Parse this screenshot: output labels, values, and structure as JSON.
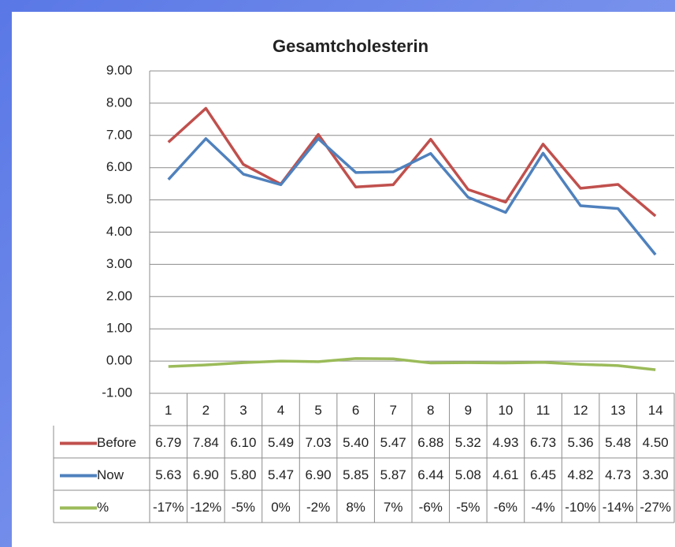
{
  "chart_data": {
    "type": "line",
    "title": "Gesamtcholesterin",
    "categories": [
      "1",
      "2",
      "3",
      "4",
      "5",
      "6",
      "7",
      "8",
      "9",
      "10",
      "11",
      "12",
      "13",
      "14"
    ],
    "series": [
      {
        "name": "Before",
        "color": "#c0504d",
        "values": [
          6.79,
          7.84,
          6.1,
          5.49,
          7.03,
          5.4,
          5.47,
          6.88,
          5.32,
          4.93,
          6.73,
          5.36,
          5.48,
          4.5
        ],
        "value_labels": [
          "6.79",
          "7.84",
          "6.10",
          "5.49",
          "7.03",
          "5.40",
          "5.47",
          "6.88",
          "5.32",
          "4.93",
          "6.73",
          "5.36",
          "5.48",
          "4.50"
        ]
      },
      {
        "name": "Now",
        "color": "#4f81bd",
        "values": [
          5.63,
          6.9,
          5.8,
          5.47,
          6.9,
          5.85,
          5.87,
          6.44,
          5.08,
          4.61,
          6.45,
          4.82,
          4.73,
          3.3
        ],
        "value_labels": [
          "5.63",
          "6.90",
          "5.80",
          "5.47",
          "6.90",
          "5.85",
          "5.87",
          "6.44",
          "5.08",
          "4.61",
          "6.45",
          "4.82",
          "4.73",
          "3.30"
        ]
      },
      {
        "name": "%",
        "color": "#9bbb59",
        "values": [
          -0.17,
          -0.12,
          -0.05,
          0,
          -0.02,
          0.08,
          0.07,
          -0.06,
          -0.05,
          -0.06,
          -0.04,
          -0.1,
          -0.14,
          -0.27
        ],
        "value_labels": [
          "-17%",
          "-12%",
          "-5%",
          "0%",
          "-2%",
          "8%",
          "7%",
          "-6%",
          "-5%",
          "-6%",
          "-4%",
          "-10%",
          "-14%",
          "-27%"
        ]
      }
    ],
    "ylim": [
      -1,
      9
    ],
    "yticks": [
      {
        "value": -1,
        "label": "-1.00"
      },
      {
        "value": 0,
        "label": "0.00"
      },
      {
        "value": 1,
        "label": "1.00"
      },
      {
        "value": 2,
        "label": "2.00"
      },
      {
        "value": 3,
        "label": "3.00"
      },
      {
        "value": 4,
        "label": "4.00"
      },
      {
        "value": 5,
        "label": "5.00"
      },
      {
        "value": 6,
        "label": "6.00"
      },
      {
        "value": 7,
        "label": "7.00"
      },
      {
        "value": 8,
        "label": "8.00"
      },
      {
        "value": 9,
        "label": "9.00"
      }
    ],
    "grid": true
  }
}
